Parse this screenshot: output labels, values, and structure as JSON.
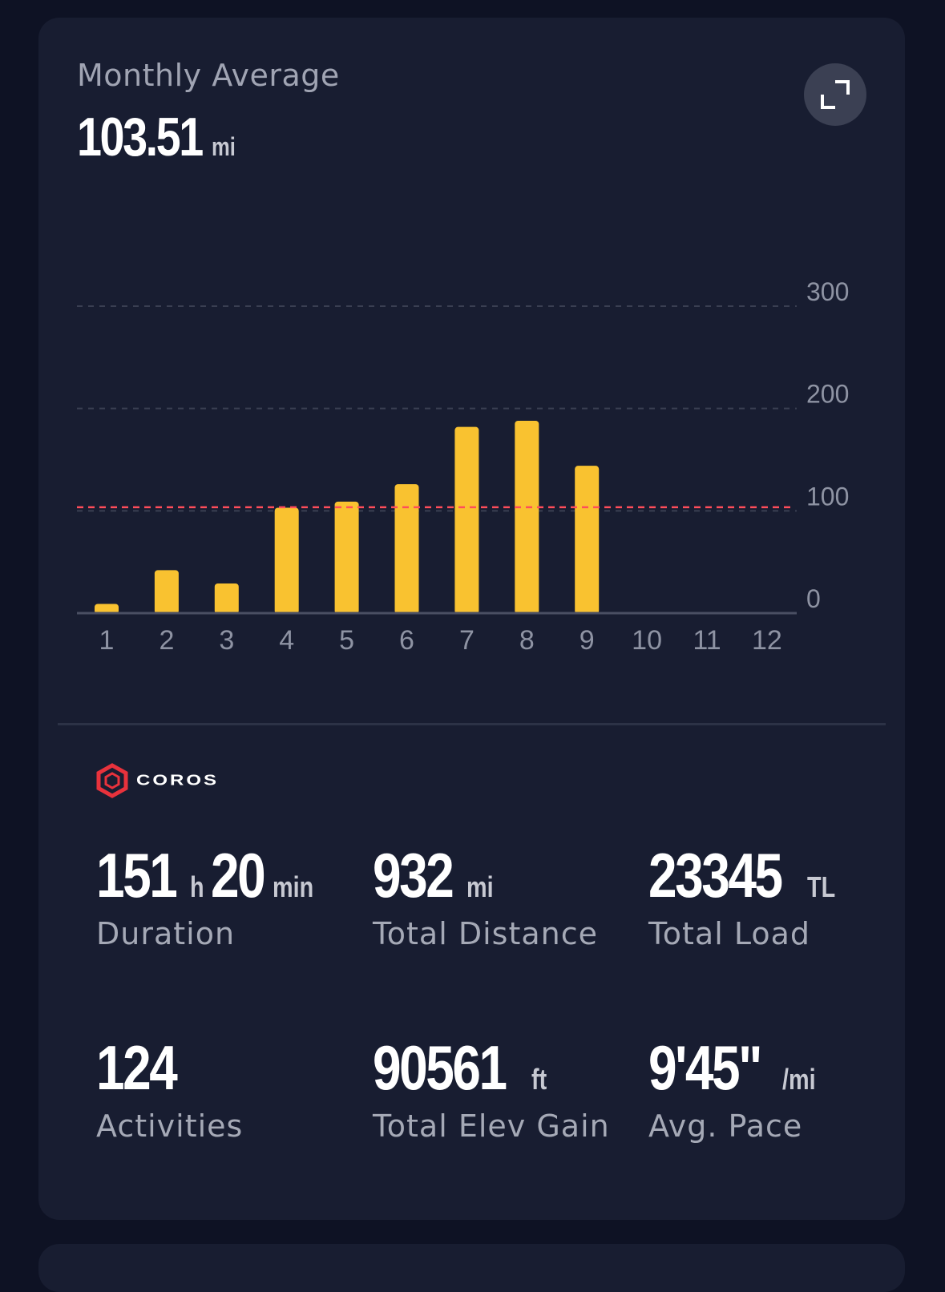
{
  "header": {
    "title": "Monthly Average",
    "value": "103.51",
    "unit": "mi"
  },
  "chart_data": {
    "type": "bar",
    "categories": [
      "1",
      "2",
      "3",
      "4",
      "5",
      "6",
      "7",
      "8",
      "9",
      "10",
      "11",
      "12"
    ],
    "values": [
      9,
      42,
      29,
      103,
      109,
      126,
      182,
      188,
      144,
      0,
      0,
      0
    ],
    "average_line": 103.51,
    "y_ticks": [
      "0",
      "100",
      "200",
      "300"
    ],
    "ylim": [
      0,
      300
    ],
    "grid": true,
    "colors": {
      "bar": "#f9c230",
      "average": "#ff4d5a",
      "grid": "#3a3f52",
      "axis": "#4a4f63",
      "tick_label": "#8e93a3"
    }
  },
  "brand": {
    "name": "COROS",
    "icon": "coros-hexagon-logo",
    "color": "#e8323c"
  },
  "stats": [
    {
      "parts": [
        {
          "num": "151",
          "unit": "h"
        },
        {
          "num": "20",
          "unit": "min"
        }
      ],
      "label": "Duration"
    },
    {
      "parts": [
        {
          "num": "932",
          "unit": "mi"
        }
      ],
      "label": "Total Distance"
    },
    {
      "parts": [
        {
          "num": "23345",
          "unit": "TL"
        }
      ],
      "label": "Total Load"
    },
    {
      "parts": [
        {
          "num": "124",
          "unit": ""
        }
      ],
      "label": "Activities"
    },
    {
      "parts": [
        {
          "num": "90561",
          "unit": "ft"
        }
      ],
      "label": "Total Elev Gain"
    },
    {
      "parts": [
        {
          "num": "9'45\"",
          "unit": "/mi"
        }
      ],
      "label": "Avg. Pace"
    }
  ],
  "icons": {
    "expand": "expand-icon"
  }
}
